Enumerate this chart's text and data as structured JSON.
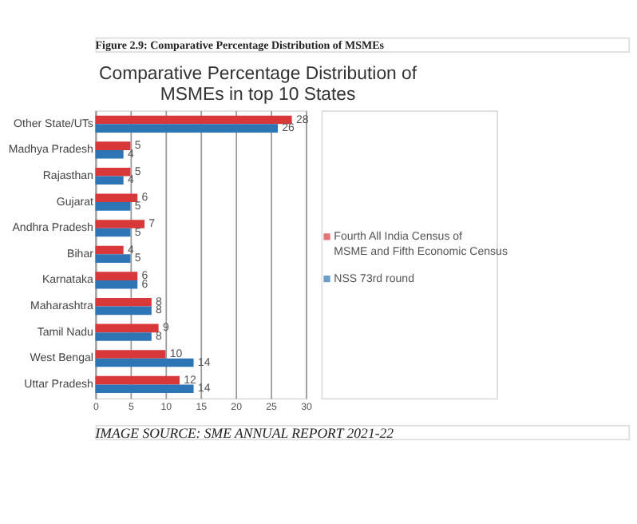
{
  "chart_data": {
    "type": "bar",
    "orientation": "horizontal",
    "title": "Comparative Percentage Distribution of MSMEs in top 10 States",
    "categories": [
      "Other State/UTs",
      "Madhya Pradesh",
      "Rajasthan",
      "Gujarat",
      "Andhra Pradesh",
      "Bihar",
      "Karnataka",
      "Maharashtra",
      "Tamil Nadu",
      "West Bengal",
      "Uttar Pradesh"
    ],
    "series": [
      {
        "name": "Fourth All India Census of MSME and Fifth Economic Census",
        "color": "#d9383a",
        "values": [
          28,
          5,
          5,
          6,
          7,
          4,
          6,
          8,
          9,
          10,
          12
        ]
      },
      {
        "name": "NSS 73rd round",
        "color": "#2e75b6",
        "values": [
          26,
          4,
          4,
          5,
          5,
          5,
          6,
          8,
          8,
          14,
          14
        ]
      }
    ],
    "xlim": [
      0,
      30
    ],
    "xticks": [
      0,
      5,
      10,
      15,
      20,
      25,
      30
    ],
    "grid": "x",
    "legend": "right",
    "data_labels": true,
    "annotations": [
      "Figure 2.9: Comparative Percentage Distribution of MSMEs",
      "IMAGE SOURCE: SME ANNUAL REPORT 2021-22"
    ]
  }
}
